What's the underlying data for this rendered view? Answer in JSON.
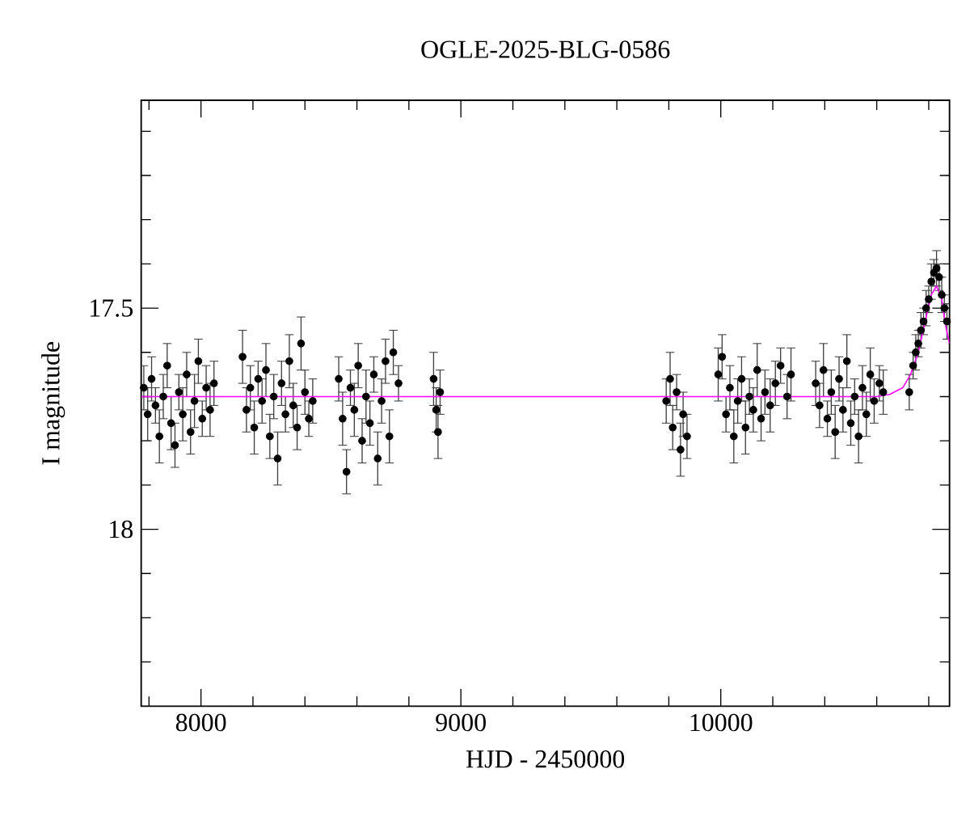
{
  "chart_data": {
    "type": "scatter",
    "title": "OGLE-2025-BLG-0586",
    "xlabel": "HJD - 2450000",
    "ylabel": "I magnitude",
    "xlim": [
      7770,
      10880
    ],
    "ylim": [
      18.4,
      17.03
    ],
    "xticks": [
      {
        "value": 7800,
        "label": null
      },
      8000,
      {
        "value": 8200,
        "label": null
      },
      {
        "value": 8400,
        "label": null
      },
      {
        "value": 8600,
        "label": null
      },
      {
        "value": 8800,
        "label": null
      },
      9000,
      {
        "value": 9200,
        "label": null
      },
      {
        "value": 9400,
        "label": null
      },
      {
        "value": 9600,
        "label": null
      },
      {
        "value": 9800,
        "label": null
      },
      10000,
      {
        "value": 10200,
        "label": null
      },
      {
        "value": 10400,
        "label": null
      },
      {
        "value": 10600,
        "label": null
      },
      {
        "value": 10800,
        "label": null
      }
    ],
    "yticks": [
      {
        "value": 17.1,
        "label": null
      },
      {
        "value": 17.2,
        "label": null
      },
      {
        "value": 17.3,
        "label": null
      },
      {
        "value": 17.4,
        "label": null
      },
      17.5,
      {
        "value": 17.6,
        "label": null
      },
      {
        "value": 17.7,
        "label": null
      },
      {
        "value": 17.8,
        "label": null
      },
      {
        "value": 17.9,
        "label": null
      },
      18,
      {
        "value": 18.1,
        "label": null
      },
      {
        "value": 18.2,
        "label": null
      },
      {
        "value": 18.3,
        "label": null
      }
    ],
    "series": [
      {
        "color": "#000000",
        "marker": "circle",
        "x": [
          7780,
          7795,
          7810,
          7825,
          7840,
          7855,
          7870,
          7885,
          7900,
          7915,
          7930,
          7945,
          7960,
          7975,
          7990,
          8005,
          8020,
          8035,
          8050,
          8160,
          8175,
          8190,
          8205,
          8220,
          8235,
          8250,
          8265,
          8280,
          8295,
          8310,
          8325,
          8340,
          8355,
          8370,
          8385,
          8400,
          8415,
          8430,
          8530,
          8545,
          8560,
          8575,
          8590,
          8605,
          8620,
          8635,
          8650,
          8665,
          8680,
          8695,
          8710,
          8725,
          8740,
          8760,
          8895,
          8905,
          8912,
          8920,
          9790,
          9805,
          9815,
          9830,
          9845,
          9855,
          9870,
          9990,
          10005,
          10020,
          10035,
          10050,
          10065,
          10080,
          10095,
          10110,
          10125,
          10140,
          10155,
          10170,
          10190,
          10210,
          10230,
          10255,
          10270,
          10365,
          10380,
          10395,
          10410,
          10425,
          10440,
          10455,
          10470,
          10485,
          10500,
          10515,
          10530,
          10545,
          10560,
          10575,
          10590,
          10610,
          10625,
          10725,
          10740,
          10750,
          10760,
          10770,
          10780,
          10790,
          10800,
          10810,
          10820,
          10830,
          10840,
          10850,
          10860,
          10870
        ],
        "values": [
          17.68,
          17.74,
          17.66,
          17.72,
          17.79,
          17.7,
          17.63,
          17.76,
          17.81,
          17.69,
          17.74,
          17.65,
          17.78,
          17.71,
          17.62,
          17.75,
          17.68,
          17.73,
          17.67,
          17.61,
          17.73,
          17.68,
          17.77,
          17.66,
          17.71,
          17.64,
          17.79,
          17.7,
          17.84,
          17.67,
          17.74,
          17.62,
          17.72,
          17.77,
          17.58,
          17.69,
          17.75,
          17.71,
          17.66,
          17.75,
          17.87,
          17.68,
          17.73,
          17.63,
          17.8,
          17.7,
          17.76,
          17.65,
          17.84,
          17.71,
          17.62,
          17.79,
          17.6,
          17.67,
          17.66,
          17.73,
          17.78,
          17.69,
          17.71,
          17.66,
          17.77,
          17.69,
          17.82,
          17.74,
          17.79,
          17.65,
          17.61,
          17.74,
          17.68,
          17.79,
          17.71,
          17.66,
          17.77,
          17.7,
          17.73,
          17.64,
          17.75,
          17.69,
          17.72,
          17.67,
          17.63,
          17.7,
          17.65,
          17.67,
          17.72,
          17.64,
          17.75,
          17.69,
          17.78,
          17.66,
          17.73,
          17.62,
          17.76,
          17.7,
          17.79,
          17.68,
          17.74,
          17.65,
          17.71,
          17.67,
          17.69,
          17.69,
          17.63,
          17.6,
          17.58,
          17.55,
          17.53,
          17.5,
          17.48,
          17.44,
          17.42,
          17.41,
          17.43,
          17.47,
          17.5,
          17.53
        ],
        "errors": [
          0.05,
          0.06,
          0.05,
          0.04,
          0.06,
          0.05,
          0.05,
          0.06,
          0.05,
          0.04,
          0.06,
          0.05,
          0.05,
          0.06,
          0.05,
          0.04,
          0.05,
          0.06,
          0.05,
          0.06,
          0.05,
          0.05,
          0.06,
          0.04,
          0.05,
          0.06,
          0.05,
          0.05,
          0.06,
          0.05,
          0.04,
          0.06,
          0.05,
          0.05,
          0.06,
          0.05,
          0.04,
          0.05,
          0.05,
          0.06,
          0.05,
          0.04,
          0.06,
          0.05,
          0.05,
          0.06,
          0.05,
          0.04,
          0.06,
          0.05,
          0.05,
          0.06,
          0.05,
          0.04,
          0.06,
          0.05,
          0.06,
          0.05,
          0.05,
          0.06,
          0.05,
          0.04,
          0.06,
          0.05,
          0.05,
          0.06,
          0.05,
          0.04,
          0.05,
          0.06,
          0.05,
          0.05,
          0.06,
          0.04,
          0.05,
          0.06,
          0.05,
          0.05,
          0.06,
          0.05,
          0.04,
          0.05,
          0.06,
          0.05,
          0.05,
          0.06,
          0.04,
          0.05,
          0.06,
          0.05,
          0.05,
          0.06,
          0.05,
          0.04,
          0.06,
          0.05,
          0.05,
          0.06,
          0.05,
          0.04,
          0.05,
          0.04,
          0.03,
          0.04,
          0.03,
          0.04,
          0.03,
          0.04,
          0.03,
          0.04,
          0.03,
          0.04,
          0.03,
          0.04,
          0.03,
          0.04
        ]
      },
      {
        "type": "line",
        "color": "#ff00ff",
        "marker": "none",
        "x": [
          7770,
          10600,
          10650,
          10700,
          10730,
          10760,
          10790,
          10810,
          10830,
          10850,
          10865,
          10880
        ],
        "values": [
          17.7,
          17.7,
          17.695,
          17.68,
          17.65,
          17.6,
          17.52,
          17.47,
          17.45,
          17.48,
          17.54,
          17.58
        ]
      }
    ]
  }
}
